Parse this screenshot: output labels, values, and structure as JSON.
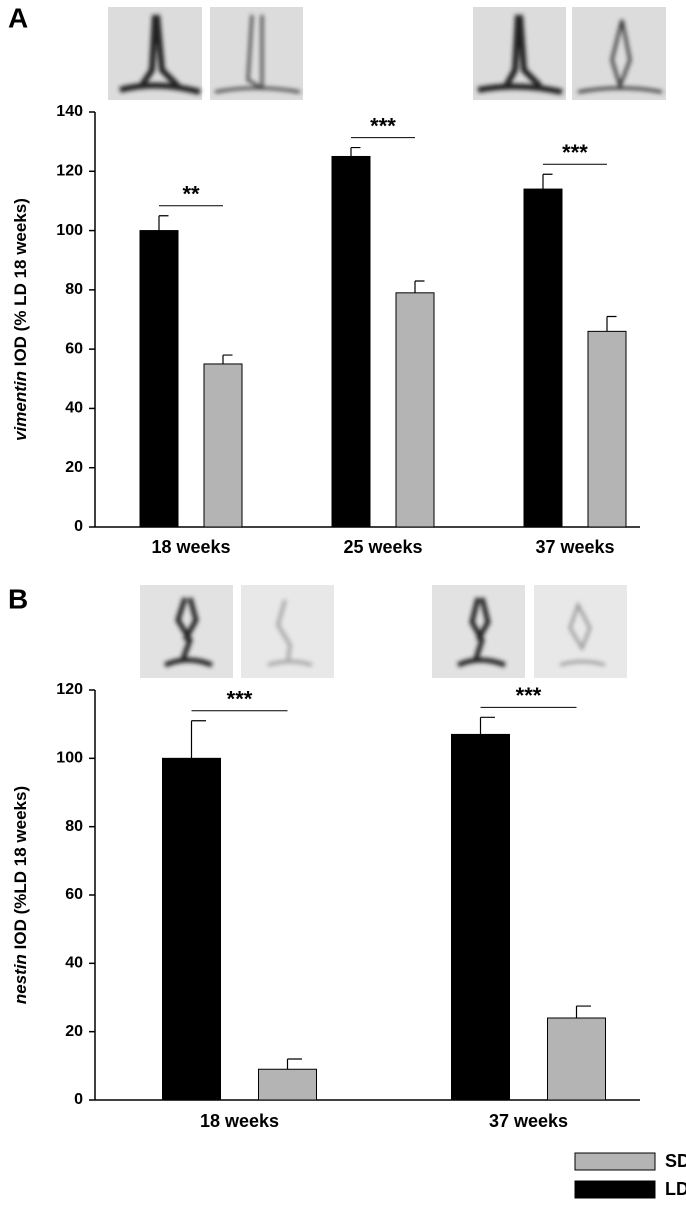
{
  "chart_data": [
    {
      "type": "bar",
      "panel_label": "A",
      "y_label_italic": "vimentin",
      "y_label": "IOD (% LD 18 weeks)",
      "categories": [
        "18 weeks",
        "25 weeks",
        "37 weeks"
      ],
      "series": [
        {
          "name": "LD",
          "color": "#000000",
          "values": [
            100,
            125,
            114
          ],
          "errors": [
            5,
            3,
            5
          ]
        },
        {
          "name": "SD",
          "color": "#b4b4b4",
          "values": [
            55,
            79,
            66
          ],
          "errors": [
            3,
            4,
            5
          ]
        }
      ],
      "ylim": [
        0,
        140
      ],
      "yticks": [
        0,
        20,
        40,
        60,
        80,
        100,
        120,
        140
      ],
      "annotations": [
        {
          "text": "**",
          "category": 0
        },
        {
          "text": "***",
          "category": 1
        },
        {
          "text": "***",
          "category": 2
        }
      ]
    },
    {
      "type": "bar",
      "panel_label": "B",
      "y_label_italic": "nestin",
      "y_label": "IOD (%LD 18 weeks)",
      "categories": [
        "18 weeks",
        "37 weeks"
      ],
      "series": [
        {
          "name": "LD",
          "color": "#000000",
          "values": [
            100,
            107
          ],
          "errors": [
            11,
            5
          ]
        },
        {
          "name": "SD",
          "color": "#b4b4b4",
          "values": [
            9,
            24
          ],
          "errors": [
            3,
            3.5
          ]
        }
      ],
      "ylim": [
        0,
        120
      ],
      "yticks": [
        0,
        20,
        40,
        60,
        80,
        100,
        120
      ],
      "annotations": [
        {
          "text": "***",
          "category": 0
        },
        {
          "text": "***",
          "category": 1
        }
      ]
    }
  ]
}
